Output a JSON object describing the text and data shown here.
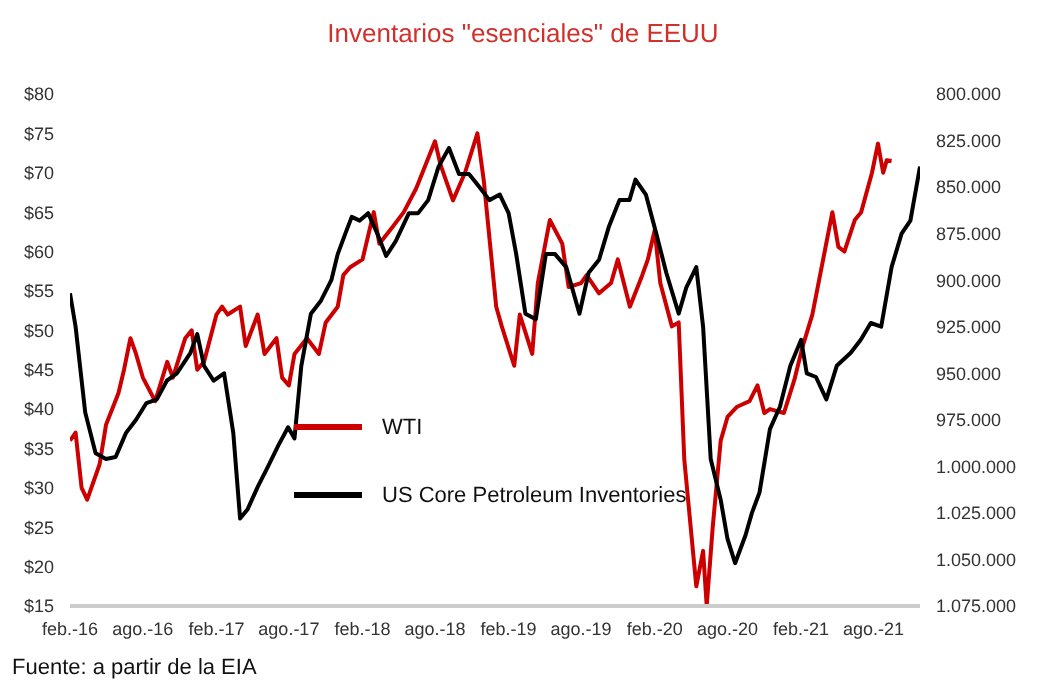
{
  "chart_data": {
    "type": "line",
    "title": "Inventarios \"esenciales\" de EEUU",
    "annotations": [
      "Fuente: a partir de la EIA"
    ],
    "xlim": [
      "2016-02-01",
      "2021-11-25"
    ],
    "xticks": [
      {
        "value": "2016-02-01",
        "label": "feb.-16"
      },
      {
        "value": "2016-08-01",
        "label": "ago.-16"
      },
      {
        "value": "2017-02-01",
        "label": "feb.-17"
      },
      {
        "value": "2017-08-01",
        "label": "ago.-17"
      },
      {
        "value": "2018-02-01",
        "label": "feb.-18"
      },
      {
        "value": "2018-08-01",
        "label": "ago.-18"
      },
      {
        "value": "2019-02-01",
        "label": "feb.-19"
      },
      {
        "value": "2019-08-01",
        "label": "ago.-19"
      },
      {
        "value": "2020-02-01",
        "label": "feb.-20"
      },
      {
        "value": "2020-08-01",
        "label": "ago.-20"
      },
      {
        "value": "2021-02-01",
        "label": "feb.-21"
      },
      {
        "value": "2021-08-01",
        "label": "ago.-21"
      }
    ],
    "ylim": [
      15,
      80
    ],
    "yticks": [
      {
        "value": 15,
        "label": "$15"
      },
      {
        "value": 20,
        "label": "$20"
      },
      {
        "value": 25,
        "label": "$25"
      },
      {
        "value": 30,
        "label": "$30"
      },
      {
        "value": 35,
        "label": "$35"
      },
      {
        "value": 40,
        "label": "$40"
      },
      {
        "value": 45,
        "label": "$45"
      },
      {
        "value": 50,
        "label": "$50"
      },
      {
        "value": 55,
        "label": "$55"
      },
      {
        "value": 60,
        "label": "$60"
      },
      {
        "value": 65,
        "label": "$65"
      },
      {
        "value": 70,
        "label": "$70"
      },
      {
        "value": 75,
        "label": "$75"
      },
      {
        "value": 80,
        "label": "$80"
      }
    ],
    "y2lim": [
      1075000,
      800000
    ],
    "y2ticks": [
      {
        "value": 800000,
        "label": "800.000"
      },
      {
        "value": 825000,
        "label": "825.000"
      },
      {
        "value": 850000,
        "label": "850.000"
      },
      {
        "value": 875000,
        "label": "875.000"
      },
      {
        "value": 900000,
        "label": "900.000"
      },
      {
        "value": 925000,
        "label": "925.000"
      },
      {
        "value": 950000,
        "label": "950.000"
      },
      {
        "value": 975000,
        "label": "975.000"
      },
      {
        "value": 1000000,
        "label": "1.000.000"
      },
      {
        "value": 1025000,
        "label": "1.025.000"
      },
      {
        "value": 1050000,
        "label": "1.050.000"
      },
      {
        "value": 1075000,
        "label": "1.075.000"
      }
    ],
    "legend": "bottom left",
    "grid": false,
    "series": [
      {
        "name": "WTI",
        "color": "#cc0000",
        "x": [
          "2016-02-01",
          "2016-02-15",
          "2016-03-01",
          "2016-03-15",
          "2016-04-15",
          "2016-05-01",
          "2016-06-01",
          "2016-06-15",
          "2016-07-01",
          "2016-07-15",
          "2016-08-01",
          "2016-09-01",
          "2016-10-01",
          "2016-10-15",
          "2016-11-15",
          "2016-12-01",
          "2016-12-15",
          "2017-01-01",
          "2017-02-01",
          "2017-02-15",
          "2017-03-01",
          "2017-04-01",
          "2017-04-15",
          "2017-05-15",
          "2017-06-01",
          "2017-07-01",
          "2017-07-15",
          "2017-08-01",
          "2017-08-15",
          "2017-09-15",
          "2017-10-15",
          "2017-11-01",
          "2017-12-01",
          "2017-12-15",
          "2018-01-01",
          "2018-02-01",
          "2018-03-01",
          "2018-03-15",
          "2018-04-15",
          "2018-05-15",
          "2018-06-15",
          "2018-08-01",
          "2018-08-15",
          "2018-09-15",
          "2018-10-15",
          "2018-11-15",
          "2018-12-01",
          "2019-01-01",
          "2019-01-15",
          "2019-02-15",
          "2019-03-01",
          "2019-04-01",
          "2019-04-15",
          "2019-05-15",
          "2019-06-15",
          "2019-07-01",
          "2019-08-01",
          "2019-08-15",
          "2019-09-15",
          "2019-10-15",
          "2019-11-01",
          "2019-12-01",
          "2020-01-01",
          "2020-01-15",
          "2020-02-01",
          "2020-02-15",
          "2020-03-15",
          "2020-04-01",
          "2020-04-15",
          "2020-05-01",
          "2020-05-15",
          "2020-06-01",
          "2020-06-10",
          "2020-06-25",
          "2020-07-15",
          "2020-08-01",
          "2020-08-25",
          "2020-09-25",
          "2020-10-15",
          "2020-11-01",
          "2020-11-15",
          "2020-12-20",
          "2021-01-15",
          "2021-02-05",
          "2021-03-01",
          "2021-03-28",
          "2021-04-20",
          "2021-05-05",
          "2021-05-20",
          "2021-06-15",
          "2021-07-01",
          "2021-07-28",
          "2021-08-12",
          "2021-08-25",
          "2021-09-03",
          "2021-09-15"
        ],
        "values": [
          36,
          37,
          30,
          28.5,
          33,
          38,
          42,
          45,
          49,
          47,
          44,
          41,
          46,
          44,
          49,
          50,
          45,
          46,
          52,
          53,
          52,
          53,
          48,
          52,
          47,
          49,
          44,
          43,
          47,
          49,
          47,
          51,
          53,
          57,
          58,
          59,
          65,
          61,
          63,
          65,
          68,
          74,
          71,
          66.5,
          70,
          75,
          69,
          53,
          50.5,
          45.5,
          52,
          47,
          56,
          64,
          61,
          55.5,
          56,
          57,
          54.7,
          56,
          59,
          53,
          57,
          59,
          62.7,
          56,
          50.5,
          51,
          33.6,
          25,
          17.5,
          22,
          15,
          25,
          36,
          39,
          40.3,
          41,
          43,
          39.5,
          40,
          39.5,
          43.7,
          48,
          52,
          59,
          65,
          60.6,
          60,
          64,
          65,
          70,
          73.7,
          70,
          71.6,
          71.5
        ]
      },
      {
        "name": "US Core Petroleum Inventories",
        "color": "#000000",
        "axis": "y2",
        "x": [
          "2016-02-01",
          "2016-02-15",
          "2016-03-10",
          "2016-04-05",
          "2016-05-01",
          "2016-05-25",
          "2016-06-20",
          "2016-07-15",
          "2016-08-10",
          "2016-09-05",
          "2016-09-30",
          "2016-10-25",
          "2016-11-28",
          "2016-12-15",
          "2017-01-01",
          "2017-01-25",
          "2017-02-20",
          "2017-03-15",
          "2017-04-01",
          "2017-04-20",
          "2017-05-15",
          "2017-06-10",
          "2017-07-05",
          "2017-07-30",
          "2017-08-15",
          "2017-09-01",
          "2017-09-25",
          "2017-10-20",
          "2017-11-15",
          "2017-12-01",
          "2017-12-20",
          "2018-01-05",
          "2018-01-25",
          "2018-02-15",
          "2018-03-10",
          "2018-04-01",
          "2018-04-25",
          "2018-05-28",
          "2018-06-20",
          "2018-07-15",
          "2018-08-10",
          "2018-09-05",
          "2018-09-30",
          "2018-10-25",
          "2018-11-20",
          "2018-12-15",
          "2019-01-10",
          "2019-02-01",
          "2019-02-20",
          "2019-03-15",
          "2019-04-10",
          "2019-05-05",
          "2019-05-28",
          "2019-06-25",
          "2019-07-28",
          "2019-08-20",
          "2019-09-15",
          "2019-10-10",
          "2019-11-05",
          "2019-11-30",
          "2019-12-15",
          "2020-01-10",
          "2020-02-05",
          "2020-03-01",
          "2020-04-01",
          "2020-04-20",
          "2020-05-15",
          "2020-06-01",
          "2020-06-20",
          "2020-07-15",
          "2020-08-01",
          "2020-08-20",
          "2020-09-15",
          "2020-10-01",
          "2020-10-20",
          "2020-11-15",
          "2020-12-10",
          "2021-01-05",
          "2021-02-01",
          "2021-02-15",
          "2021-03-10",
          "2021-04-05",
          "2021-05-01",
          "2021-06-05",
          "2021-06-30",
          "2021-07-25",
          "2021-08-20",
          "2021-09-15",
          "2021-10-10",
          "2021-11-01",
          "2021-11-25"
        ],
        "values": [
          907000,
          925000,
          971000,
          993000,
          996000,
          995000,
          982000,
          975000,
          966000,
          964000,
          954000,
          950000,
          939000,
          929000,
          946000,
          954000,
          950000,
          982000,
          1028000,
          1023000,
          1011000,
          1000000,
          989000,
          979000,
          985000,
          946000,
          918000,
          911000,
          900000,
          886000,
          875000,
          866000,
          868000,
          864000,
          875000,
          887000,
          879000,
          864000,
          864000,
          857000,
          839000,
          829000,
          843000,
          843000,
          850000,
          857000,
          854000,
          864000,
          886000,
          918000,
          921000,
          886000,
          886000,
          893000,
          918000,
          896000,
          889000,
          871000,
          857000,
          857000,
          846000,
          854000,
          875000,
          896000,
          918000,
          904000,
          893000,
          925000,
          996000,
          1018000,
          1039000,
          1052000,
          1037000,
          1025000,
          1014000,
          980000,
          968000,
          946000,
          932000,
          950000,
          952000,
          964000,
          946000,
          939000,
          932000,
          923000,
          925000,
          893000,
          875000,
          868000,
          839000
        ]
      }
    ]
  }
}
